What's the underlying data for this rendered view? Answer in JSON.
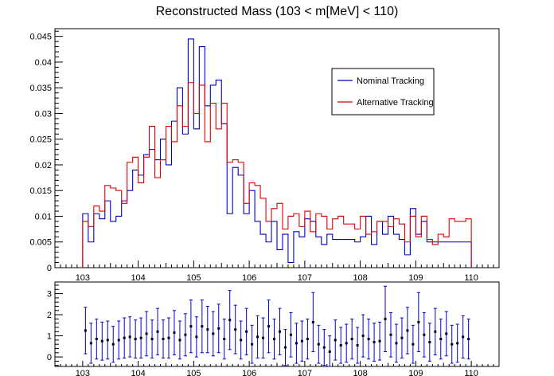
{
  "chart_data": [
    {
      "type": "histogram",
      "title": "Reconstructed Mass (103 < m[MeV] < 110)",
      "xlabel": "",
      "ylabel": "",
      "xlim": [
        102.5,
        110.5
      ],
      "ylim": [
        0,
        0.0465
      ],
      "grid": false,
      "legend": "top-right",
      "bin_start": 103.0,
      "bin_width": 0.1,
      "x_ticks": [
        103,
        104,
        105,
        106,
        107,
        108,
        109,
        110
      ],
      "y_ticks": [
        0,
        0.005,
        0.01,
        0.015,
        0.02,
        0.025,
        0.03,
        0.035,
        0.04,
        0.045
      ],
      "y_tick_labels": [
        "0",
        "0.005",
        "0.01",
        "0.015",
        "0.02",
        "0.025",
        "0.03",
        "0.035",
        "0.04",
        "0.045"
      ],
      "series": [
        {
          "name": "Nominal Tracking",
          "color": "#0000cc",
          "values": [
            0.0105,
            0.005,
            0.0105,
            0.0095,
            0.013,
            0.009,
            0.01,
            0.013,
            0.015,
            0.019,
            0.018,
            0.022,
            0.023,
            0.021,
            0.025,
            0.02,
            0.0285,
            0.035,
            0.026,
            0.0445,
            0.027,
            0.043,
            0.0315,
            0.0355,
            0.0365,
            0.028,
            0.0105,
            0.0195,
            0.018,
            0.0105,
            0.015,
            0.009,
            0.0065,
            0.005,
            0.009,
            0.0035,
            0.0065,
            0.001,
            0.007,
            0.006,
            0.0095,
            0.009,
            0.006,
            0.0045,
            0.0065,
            0.0055,
            0.0055,
            0.0055,
            0.0055,
            0.005,
            0.006,
            0.01,
            0.0045,
            0.009,
            0.0065,
            0.01,
            0.0065,
            0.0055,
            0.0025,
            0.0115,
            0.0065,
            0.009,
            0.005,
            0.005,
            0.005,
            0.005,
            0.005,
            0.005,
            0.005,
            0.005
          ]
        },
        {
          "name": "Alternative Tracking",
          "color": "#dd0000",
          "values": [
            0.009,
            0.008,
            0.012,
            0.011,
            0.016,
            0.0155,
            0.015,
            0.0125,
            0.0205,
            0.0215,
            0.0165,
            0.0215,
            0.0275,
            0.0175,
            0.021,
            0.0275,
            0.0245,
            0.0315,
            0.0275,
            0.036,
            0.03,
            0.0355,
            0.0245,
            0.032,
            0.027,
            0.032,
            0.0205,
            0.021,
            0.0205,
            0.0125,
            0.0165,
            0.016,
            0.0135,
            0.009,
            0.0115,
            0.0125,
            0.0075,
            0.01,
            0.0105,
            0.008,
            0.011,
            0.007,
            0.0105,
            0.01,
            0.0075,
            0.0095,
            0.01,
            0.0085,
            0.0085,
            0.0075,
            0.01,
            0.0065,
            0.007,
            0.009,
            0.009,
            0.008,
            0.0095,
            0.0085,
            0.005,
            0.01,
            0.006,
            0.01,
            0.0055,
            0.0045,
            0.0065,
            0.006,
            0.0095,
            0.009,
            0.009,
            0.0095
          ]
        }
      ]
    },
    {
      "type": "errorbar",
      "title": "",
      "xlabel": "",
      "ylabel": "",
      "xlim": [
        102.5,
        110.5
      ],
      "ylim": [
        -0.45,
        3.55
      ],
      "grid": false,
      "x_ticks": [
        103,
        104,
        105,
        106,
        107,
        108,
        109,
        110
      ],
      "y_ticks": [
        0,
        1,
        2,
        3
      ],
      "y_tick_labels": [
        "0",
        "1",
        "2",
        "3"
      ],
      "marker_color": "#000000",
      "error_color": "#0000cc",
      "x": [
        103.05,
        103.15,
        103.25,
        103.35,
        103.45,
        103.55,
        103.65,
        103.75,
        103.85,
        103.95,
        104.05,
        104.15,
        104.25,
        104.35,
        104.45,
        104.55,
        104.65,
        104.75,
        104.85,
        104.95,
        105.05,
        105.15,
        105.25,
        105.35,
        105.45,
        105.55,
        105.65,
        105.75,
        105.85,
        105.95,
        106.05,
        106.15,
        106.25,
        106.35,
        106.45,
        106.55,
        106.65,
        106.75,
        106.85,
        106.95,
        107.05,
        107.15,
        107.25,
        107.35,
        107.45,
        107.55,
        107.65,
        107.75,
        107.85,
        107.95,
        108.05,
        108.15,
        108.25,
        108.35,
        108.45,
        108.55,
        108.65,
        108.75,
        108.85,
        108.95,
        109.05,
        109.15,
        109.25,
        109.35,
        109.45,
        109.55,
        109.65,
        109.75,
        109.85,
        109.95
      ],
      "y": [
        1.25,
        0.65,
        0.85,
        0.75,
        0.8,
        0.6,
        0.8,
        0.9,
        0.95,
        0.85,
        0.9,
        1.1,
        0.85,
        1.2,
        0.85,
        0.9,
        1.15,
        0.8,
        1.05,
        1.45,
        0.95,
        1.45,
        1.3,
        1.1,
        1.35,
        0.85,
        1.75,
        1.3,
        0.8,
        1.2,
        0.6,
        0.95,
        0.9,
        1.45,
        0.85,
        1.2,
        0.45,
        1.05,
        0.65,
        0.75,
        0.85,
        1.65,
        0.6,
        0.45,
        0.25,
        0.8,
        0.55,
        0.65,
        0.85,
        0.55,
        1.0,
        0.85,
        0.7,
        0.75,
        1.8,
        1.05,
        0.65,
        0.9,
        1.25,
        0.6,
        1.65,
        1.05,
        0.7,
        1.2,
        0.85,
        1.1,
        0.6,
        0.65,
        0.95,
        0.85
      ],
      "yerr": [
        1.1,
        0.95,
        0.95,
        0.9,
        0.9,
        0.85,
        0.9,
        0.95,
        0.95,
        0.9,
        0.95,
        1.05,
        0.9,
        1.1,
        0.9,
        0.95,
        1.05,
        0.9,
        1.0,
        1.25,
        0.95,
        1.25,
        1.1,
        1.05,
        1.15,
        0.95,
        1.4,
        1.15,
        0.9,
        1.1,
        0.9,
        1.0,
        0.95,
        1.25,
        0.95,
        1.1,
        0.85,
        1.05,
        0.95,
        0.95,
        0.95,
        1.4,
        0.9,
        0.85,
        0.75,
        0.95,
        0.85,
        0.9,
        0.95,
        0.85,
        1.0,
        0.95,
        0.9,
        0.9,
        1.55,
        1.05,
        0.9,
        0.95,
        1.1,
        0.9,
        1.4,
        1.05,
        0.9,
        1.1,
        0.95,
        1.05,
        0.9,
        0.9,
        1.0,
        0.95
      ]
    }
  ]
}
